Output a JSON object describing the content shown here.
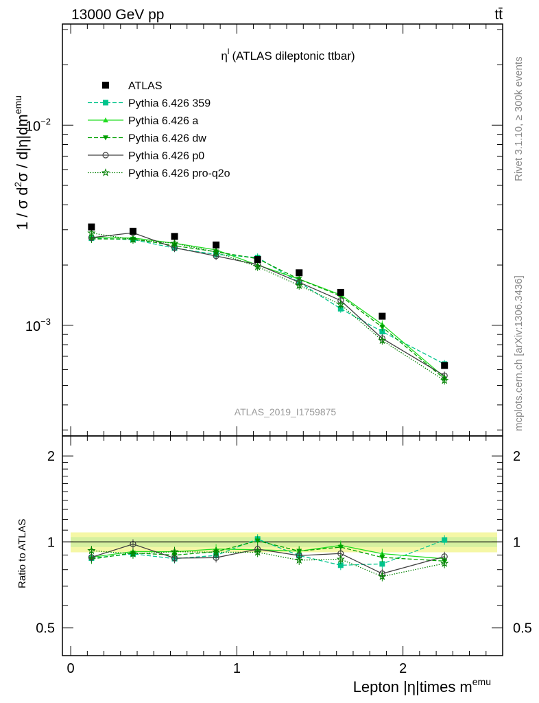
{
  "header": {
    "left": "13000 GeV pp",
    "right": "tt̄"
  },
  "side_labels": {
    "rivet": "Rivet 3.1.10, ≥ 300k events",
    "mcplots": "mcplots.cern.ch [arXiv:1306.3436]"
  },
  "chart_data": {
    "type": "line",
    "title": "η",
    "title_sup": "l",
    "title_rest": "(ATLAS dileptonic ttbar)",
    "analysis_tag": "ATLAS_2019_I1759875",
    "xlabel": "Lepton |η|times m",
    "xlabel_sup": "emu",
    "ylabel": "1 / σ d²σ / d|η|dm^emu",
    "ratio_ylabel": "Ratio to ATLAS",
    "xlim": [
      -0.05,
      2.6
    ],
    "ylim": [
      0.00028,
      0.032
    ],
    "yscale": "log",
    "ratio_ylim": [
      0.4,
      2.35
    ],
    "main_yticks": [
      {
        "v": 0.001,
        "base": "10",
        "exp": "−3"
      },
      {
        "v": 0.01,
        "base": "10",
        "exp": "−2"
      }
    ],
    "xticks": [
      {
        "v": 0,
        "label": "0"
      },
      {
        "v": 1,
        "label": "1"
      },
      {
        "v": 2,
        "label": "2"
      }
    ],
    "ratio_yticks": [
      {
        "v": 0.5,
        "label": "0.5"
      },
      {
        "v": 1,
        "label": "1"
      },
      {
        "v": 2,
        "label": "2"
      }
    ],
    "x": [
      0.125,
      0.375,
      0.625,
      0.875,
      1.125,
      1.375,
      1.625,
      1.875,
      2.25
    ],
    "data": {
      "name": "ATLAS",
      "values": [
        0.0031,
        0.00295,
        0.00278,
        0.00252,
        0.00213,
        0.00183,
        0.00146,
        0.00111,
        0.00063
      ],
      "band_rel": 0.04
    },
    "series": [
      {
        "name": "Pythia 6.426 359",
        "color": "#00c48c",
        "dash": "6,3",
        "marker": "square",
        "values": [
          0.00272,
          0.00268,
          0.00243,
          0.00226,
          0.00218,
          0.00164,
          0.00121,
          0.00093,
          0.00064
        ]
      },
      {
        "name": "Pythia 6.426 a",
        "color": "#22dd22",
        "dash": "",
        "marker": "triangle-up",
        "values": [
          0.00274,
          0.00273,
          0.00257,
          0.00238,
          0.002,
          0.0017,
          0.00142,
          0.00101,
          0.00055
        ]
      },
      {
        "name": "Pythia 6.426 dw",
        "color": "#00a000",
        "dash": "6,3",
        "marker": "triangle-down",
        "values": [
          0.0027,
          0.0027,
          0.0025,
          0.00233,
          0.00215,
          0.0017,
          0.0014,
          0.00098,
          0.00054
        ]
      },
      {
        "name": "Pythia 6.426 p0",
        "color": "#404040",
        "dash": "",
        "marker": "circle-open",
        "values": [
          0.00274,
          0.0029,
          0.00244,
          0.00222,
          0.00201,
          0.00164,
          0.00133,
          0.00086,
          0.00056
        ]
      },
      {
        "name": "Pythia 6.426 pro-q2o",
        "color": "#008000",
        "dash": "1.5,2",
        "marker": "star-open",
        "values": [
          0.00289,
          0.00268,
          0.00257,
          0.00232,
          0.00196,
          0.00158,
          0.00127,
          0.00084,
          0.00053
        ]
      }
    ]
  }
}
